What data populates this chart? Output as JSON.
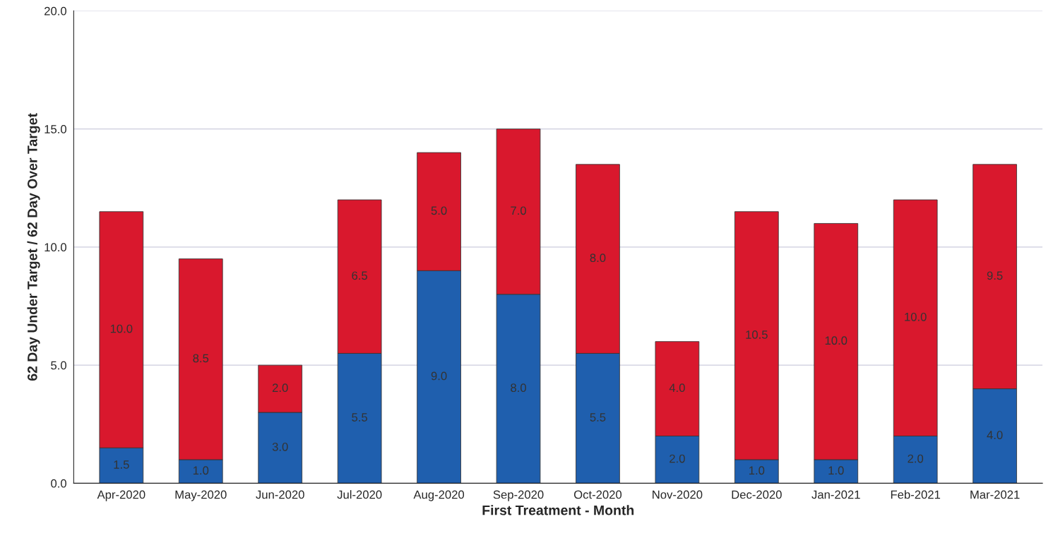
{
  "chart_data": {
    "type": "bar",
    "stacked": true,
    "xlabel": "First Treatment - Month",
    "ylabel": "62 Day Under Target / 62 Day Over Target",
    "categories": [
      "Apr-2020",
      "May-2020",
      "Jun-2020",
      "Jul-2020",
      "Aug-2020",
      "Sep-2020",
      "Oct-2020",
      "Nov-2020",
      "Dec-2020",
      "Jan-2021",
      "Feb-2021",
      "Mar-2021"
    ],
    "series": [
      {
        "color": "#1f5fae",
        "values": [
          1.5,
          1.0,
          3.0,
          5.5,
          9.0,
          8.0,
          5.5,
          2.0,
          1.0,
          1.0,
          2.0,
          4.0
        ],
        "value_labels": [
          "1.5",
          "1.0",
          "3.0",
          "5.5",
          "9.0",
          "8.0",
          "5.5",
          "2.0",
          "1.0",
          "1.0",
          "2.0",
          "4.0"
        ]
      },
      {
        "color": "#d9182d",
        "values": [
          10.0,
          8.5,
          2.0,
          6.5,
          5.0,
          7.0,
          8.0,
          4.0,
          10.5,
          10.0,
          10.0,
          9.5
        ],
        "value_labels": [
          "10.0",
          "8.5",
          "2.0",
          "6.5",
          "5.0",
          "7.0",
          "8.0",
          "4.0",
          "10.5",
          "10.0",
          "10.0",
          "9.5"
        ]
      }
    ],
    "ylim": [
      0,
      20
    ],
    "yticks": [
      {
        "value": 0,
        "label": "0.0"
      },
      {
        "value": 5,
        "label": "5.0"
      },
      {
        "value": 10,
        "label": "10.0"
      },
      {
        "value": 15,
        "label": "15.0"
      },
      {
        "value": 20,
        "label": "20.0"
      }
    ],
    "grid": "y"
  }
}
